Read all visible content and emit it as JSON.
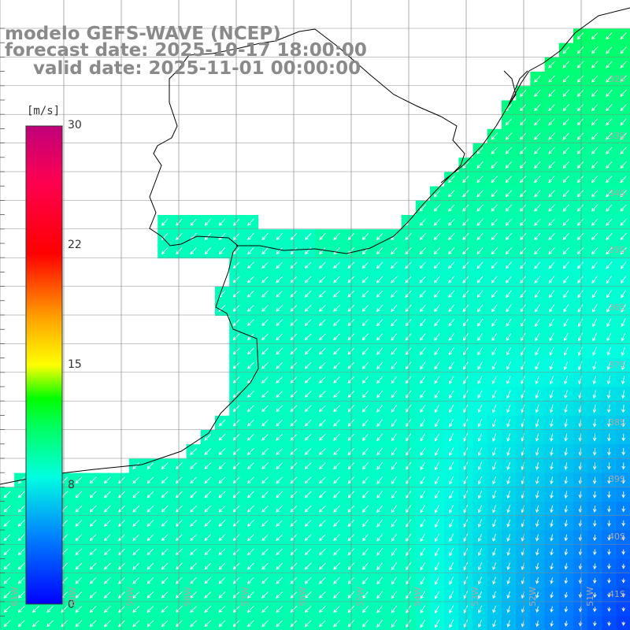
{
  "title": {
    "line1": "modelo GEFS-WAVE (NCEP)",
    "line2": "forecast date: 2025-10-17 18:00:00",
    "line3": "valid date: 2025-11-01 00:00:00"
  },
  "colorbar": {
    "unit": "[m/s]",
    "ticks": [
      "30",
      "22",
      "15",
      "8",
      "0"
    ],
    "range": [
      0,
      30
    ],
    "colors": [
      "#0000ff",
      "#0080ff",
      "#00e0ff",
      "#00ff80",
      "#00ff00",
      "#b0ff00",
      "#ffff00",
      "#ffa000",
      "#ff4000",
      "#ff0000",
      "#e0004c",
      "#c0007a"
    ]
  },
  "map": {
    "lat_labels": [
      "32S",
      "33S",
      "34S",
      "35S",
      "36S",
      "37S",
      "38S",
      "39S",
      "40S",
      "41S"
    ],
    "lon_labels": [
      "61W",
      "60W",
      "59W",
      "58W",
      "57W",
      "56W",
      "55W",
      "54W",
      "53W",
      "52W",
      "51W"
    ],
    "land_color": "#ffffff",
    "grid_color": "#888888",
    "arrow_color": "#ffffff",
    "arrow_field": "wind direction arrows, mostly toward the southwest, turning southward in the southeast"
  }
}
